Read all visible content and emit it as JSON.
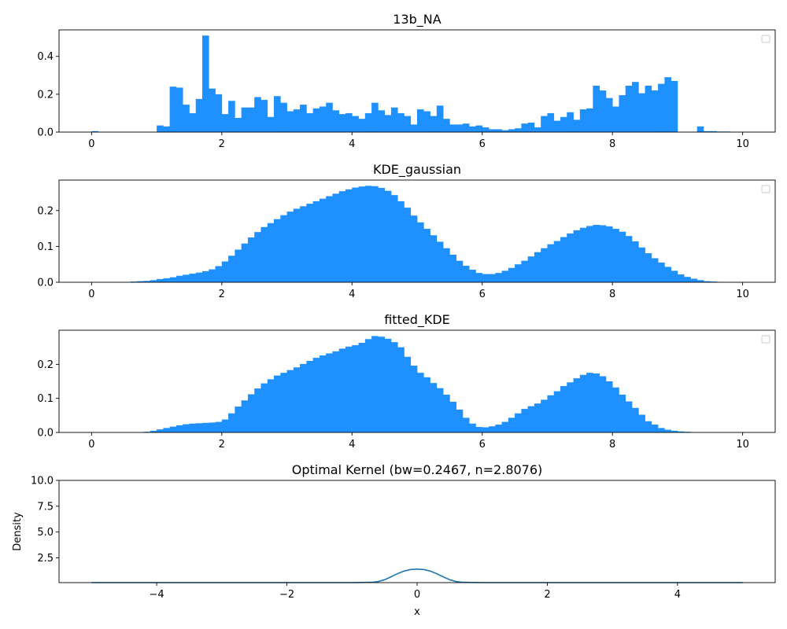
{
  "colors": {
    "bar": "#1e90ff",
    "line": "#1f77b4",
    "axis": "#000000",
    "background": "#ffffff"
  },
  "chart_data": [
    {
      "type": "bar",
      "title": "13b_NA",
      "xlabel": "",
      "ylabel": "",
      "xlim": [
        -0.5,
        10.5
      ],
      "ylim": [
        0,
        0.54
      ],
      "xticks": [
        0,
        2,
        4,
        6,
        8,
        10
      ],
      "xtick_labels": [
        "0",
        "2",
        "4",
        "6",
        "8",
        "10"
      ],
      "yticks": [
        0.0,
        0.2,
        0.4
      ],
      "ytick_labels": [
        "0.0",
        "0.2",
        "0.4"
      ],
      "legend": "top-right (empty)",
      "grid": false,
      "bin_start": 0,
      "bin_width": 0.1,
      "values": [
        0.005,
        0,
        0,
        0,
        0,
        0,
        0,
        0,
        0,
        0,
        0.035,
        0.03,
        0.24,
        0.235,
        0.145,
        0.1,
        0.175,
        0.51,
        0.23,
        0.2,
        0.095,
        0.165,
        0.075,
        0.13,
        0.13,
        0.185,
        0.17,
        0.08,
        0.19,
        0.155,
        0.11,
        0.12,
        0.145,
        0.1,
        0.125,
        0.135,
        0.155,
        0.115,
        0.095,
        0.1,
        0.085,
        0.07,
        0.1,
        0.155,
        0.115,
        0.09,
        0.13,
        0.1,
        0.085,
        0.04,
        0.12,
        0.11,
        0.085,
        0.14,
        0.07,
        0.04,
        0.04,
        0.045,
        0.03,
        0.035,
        0.025,
        0.015,
        0.015,
        0.01,
        0.015,
        0.02,
        0.045,
        0.05,
        0.025,
        0.085,
        0.1,
        0.06,
        0.08,
        0.105,
        0.065,
        0.12,
        0.125,
        0.245,
        0.22,
        0.18,
        0.135,
        0.195,
        0.245,
        0.265,
        0.205,
        0.245,
        0.22,
        0.255,
        0.29,
        0.27,
        0,
        0,
        0,
        0.03,
        0.005,
        0.005,
        0.003,
        0.003,
        0,
        0,
        0
      ]
    },
    {
      "type": "bar",
      "title": "KDE_gaussian",
      "xlabel": "",
      "ylabel": "",
      "xlim": [
        -0.5,
        10.5
      ],
      "ylim": [
        0,
        0.285
      ],
      "xticks": [
        0,
        2,
        4,
        6,
        8,
        10
      ],
      "xtick_labels": [
        "0",
        "2",
        "4",
        "6",
        "8",
        "10"
      ],
      "yticks": [
        0.0,
        0.1,
        0.2
      ],
      "ytick_labels": [
        "0.0",
        "0.1",
        "0.2"
      ],
      "legend": "top-right (empty)",
      "grid": false,
      "bin_start": 0,
      "bin_width": 0.1,
      "values": [
        0,
        0,
        0,
        0,
        0,
        0,
        0.002,
        0.003,
        0.004,
        0.006,
        0.009,
        0.011,
        0.014,
        0.018,
        0.021,
        0.024,
        0.027,
        0.031,
        0.036,
        0.045,
        0.058,
        0.074,
        0.091,
        0.108,
        0.125,
        0.14,
        0.154,
        0.165,
        0.176,
        0.187,
        0.197,
        0.205,
        0.212,
        0.219,
        0.226,
        0.233,
        0.24,
        0.247,
        0.254,
        0.259,
        0.264,
        0.267,
        0.269,
        0.268,
        0.263,
        0.255,
        0.243,
        0.226,
        0.208,
        0.186,
        0.167,
        0.149,
        0.131,
        0.113,
        0.095,
        0.077,
        0.06,
        0.046,
        0.035,
        0.026,
        0.023,
        0.023,
        0.026,
        0.032,
        0.04,
        0.05,
        0.06,
        0.072,
        0.084,
        0.095,
        0.106,
        0.115,
        0.126,
        0.136,
        0.145,
        0.152,
        0.157,
        0.16,
        0.159,
        0.156,
        0.149,
        0.141,
        0.129,
        0.114,
        0.097,
        0.081,
        0.067,
        0.055,
        0.043,
        0.032,
        0.022,
        0.015,
        0.01,
        0.006,
        0.003,
        0.002,
        0.001,
        0,
        0,
        0
      ]
    },
    {
      "type": "bar",
      "title": "fitted_KDE",
      "xlabel": "",
      "ylabel": "",
      "xlim": [
        -0.5,
        10.5
      ],
      "ylim": [
        0,
        0.3
      ],
      "xticks": [
        0,
        2,
        4,
        6,
        8,
        10
      ],
      "xtick_labels": [
        "0",
        "2",
        "4",
        "6",
        "8",
        "10"
      ],
      "yticks": [
        0.0,
        0.1,
        0.2
      ],
      "ytick_labels": [
        "0.0",
        "0.1",
        "0.2"
      ],
      "legend": "top-right (empty)",
      "grid": false,
      "bin_start": 0,
      "bin_width": 0.1,
      "values": [
        0,
        0,
        0,
        0,
        0,
        0,
        0,
        0,
        0.002,
        0.005,
        0.009,
        0.013,
        0.017,
        0.021,
        0.024,
        0.026,
        0.027,
        0.028,
        0.029,
        0.031,
        0.038,
        0.056,
        0.076,
        0.094,
        0.112,
        0.129,
        0.144,
        0.156,
        0.167,
        0.175,
        0.183,
        0.191,
        0.201,
        0.21,
        0.219,
        0.226,
        0.232,
        0.238,
        0.246,
        0.252,
        0.256,
        0.263,
        0.274,
        0.283,
        0.281,
        0.275,
        0.265,
        0.25,
        0.222,
        0.196,
        0.175,
        0.162,
        0.145,
        0.13,
        0.111,
        0.09,
        0.067,
        0.043,
        0.026,
        0.016,
        0.015,
        0.018,
        0.023,
        0.031,
        0.043,
        0.056,
        0.069,
        0.077,
        0.085,
        0.096,
        0.109,
        0.121,
        0.136,
        0.147,
        0.159,
        0.169,
        0.175,
        0.173,
        0.165,
        0.15,
        0.132,
        0.111,
        0.091,
        0.072,
        0.052,
        0.033,
        0.023,
        0.013,
        0.008,
        0.005,
        0.003,
        0.002,
        0,
        0,
        0,
        0,
        0,
        0,
        0,
        0,
        0
      ]
    },
    {
      "type": "line",
      "title": "Optimal Kernel (bw=0.2467, n=2.8076)",
      "xlabel": "x",
      "ylabel": "Density",
      "xlim": [
        -5.5,
        5.5
      ],
      "ylim": [
        0.1,
        10.0
      ],
      "xticks": [
        -4,
        -2,
        0,
        2,
        4
      ],
      "xtick_labels": [
        "−4",
        "−2",
        "0",
        "2",
        "4"
      ],
      "yticks": [
        2.5,
        5.0,
        7.5,
        10.0
      ],
      "ytick_labels": [
        "2.5",
        "5.0",
        "7.5",
        "10.0"
      ],
      "grid": false,
      "series": [
        {
          "x": [
            -5,
            -4,
            -3,
            -2,
            -1,
            -0.7,
            -0.6,
            -0.5,
            -0.4,
            -0.3,
            -0.2,
            -0.1,
            0,
            0.1,
            0.2,
            0.3,
            0.4,
            0.5,
            0.6,
            0.7,
            1,
            2,
            3,
            4,
            5
          ],
          "values": [
            0.1,
            0.1,
            0.1,
            0.1,
            0.1,
            0.13,
            0.2,
            0.38,
            0.66,
            0.97,
            1.22,
            1.37,
            1.41,
            1.37,
            1.22,
            0.97,
            0.66,
            0.38,
            0.2,
            0.13,
            0.1,
            0.1,
            0.1,
            0.1,
            0.1
          ]
        }
      ]
    }
  ]
}
